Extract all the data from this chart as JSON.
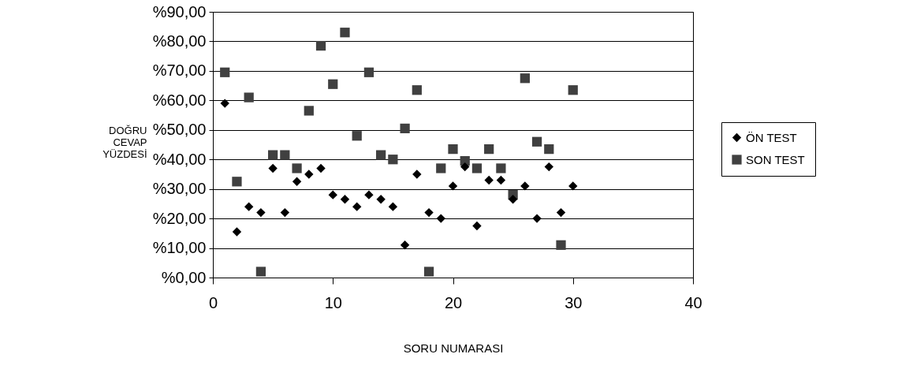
{
  "chart_data": {
    "type": "scatter",
    "xlabel": "SORU NUMARASI",
    "ylabel": "DOĞRU CEVAP YÜZDESİ",
    "x": [
      1,
      2,
      3,
      4,
      5,
      6,
      7,
      8,
      9,
      10,
      11,
      12,
      13,
      14,
      15,
      16,
      17,
      18,
      19,
      20,
      21,
      22,
      23,
      24,
      25,
      26,
      27,
      28,
      29,
      30
    ],
    "series": [
      {
        "name": "ÖN TEST",
        "color": "#000000",
        "marker": "diamond",
        "values": [
          59,
          15.5,
          24,
          22,
          37,
          22,
          32.5,
          35,
          37,
          28,
          26.5,
          24,
          28,
          26.5,
          24,
          11,
          35,
          22,
          20,
          31,
          37.5,
          17.5,
          33,
          33,
          26.5,
          31,
          20,
          37.5,
          22,
          31
        ]
      },
      {
        "name": "SON TEST",
        "color": "#404040",
        "marker": "square",
        "values": [
          69.5,
          32.5,
          61,
          2,
          41.5,
          41.5,
          37,
          56.5,
          78.5,
          65.5,
          83,
          48,
          69.5,
          41.5,
          40,
          50.5,
          63.5,
          2,
          37,
          43.5,
          39.5,
          37,
          43.5,
          37,
          28,
          67.5,
          46,
          43.5,
          11,
          63.5
        ]
      }
    ],
    "xlim": [
      0,
      40
    ],
    "xticks": [
      0,
      10,
      20,
      30,
      40
    ],
    "ylim": [
      0,
      90
    ],
    "yticks": [
      {
        "value": 0,
        "label": "%0,00"
      },
      {
        "value": 10,
        "label": "%10,00"
      },
      {
        "value": 20,
        "label": "%20,00"
      },
      {
        "value": 30,
        "label": "%30,00"
      },
      {
        "value": 40,
        "label": "%40,00"
      },
      {
        "value": 50,
        "label": "%50,00"
      },
      {
        "value": 60,
        "label": "%60,00"
      },
      {
        "value": 70,
        "label": "%70,00"
      },
      {
        "value": 80,
        "label": "%80,00"
      },
      {
        "value": 90,
        "label": "%90,00"
      }
    ],
    "grid": "y",
    "legend": "right"
  }
}
